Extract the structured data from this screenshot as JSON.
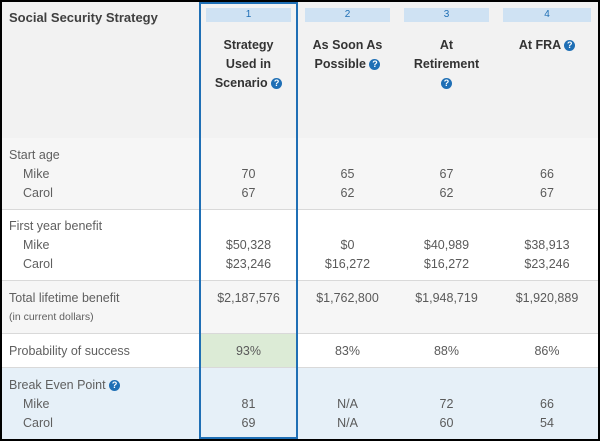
{
  "table": {
    "header_label": "Social Security Strategy",
    "columns": [
      {
        "number": "1",
        "title_lines": [
          "Strategy",
          "Used in",
          "Scenario"
        ],
        "has_help": true
      },
      {
        "number": "2",
        "title_lines": [
          "As Soon As",
          "Possible"
        ],
        "has_help": true
      },
      {
        "number": "3",
        "title_lines": [
          "At",
          "Retirement"
        ],
        "has_help": true,
        "help_own_line": true
      },
      {
        "number": "4",
        "title_lines": [
          "At FRA"
        ],
        "has_help": true
      }
    ],
    "help_icon": "question-circle-icon",
    "rows": {
      "start_age": {
        "label": "Start age",
        "sub": [
          "Mike",
          "Carol"
        ],
        "values": [
          [
            "70",
            "67"
          ],
          [
            "65",
            "62"
          ],
          [
            "67",
            "62"
          ],
          [
            "66",
            "67"
          ]
        ]
      },
      "first_year": {
        "label": "First year benefit",
        "sub": [
          "Mike",
          "Carol"
        ],
        "values": [
          [
            "$50,328",
            "$23,246"
          ],
          [
            "$0",
            "$16,272"
          ],
          [
            "$40,989",
            "$16,272"
          ],
          [
            "$38,913",
            "$23,246"
          ]
        ]
      },
      "lifetime": {
        "label": "Total lifetime benefit",
        "note": "(in current dollars)",
        "values": [
          "$2,187,576",
          "$1,762,800",
          "$1,948,719",
          "$1,920,889"
        ]
      },
      "success": {
        "label": "Probability of success",
        "values": [
          "93%",
          "83%",
          "88%",
          "86%"
        ]
      },
      "break_even": {
        "label": "Break Even Point",
        "sub": [
          "Mike",
          "Carol"
        ],
        "values": [
          [
            "81",
            "69"
          ],
          [
            "N/A",
            "N/A"
          ],
          [
            "72",
            "60"
          ],
          [
            "66",
            "54"
          ]
        ]
      }
    },
    "colors": {
      "accent": "#1f6fb5",
      "header_bar": "#cfe2f3",
      "success_highlight": "#dcebd6",
      "break_even_bg": "#e6f0f8"
    }
  }
}
